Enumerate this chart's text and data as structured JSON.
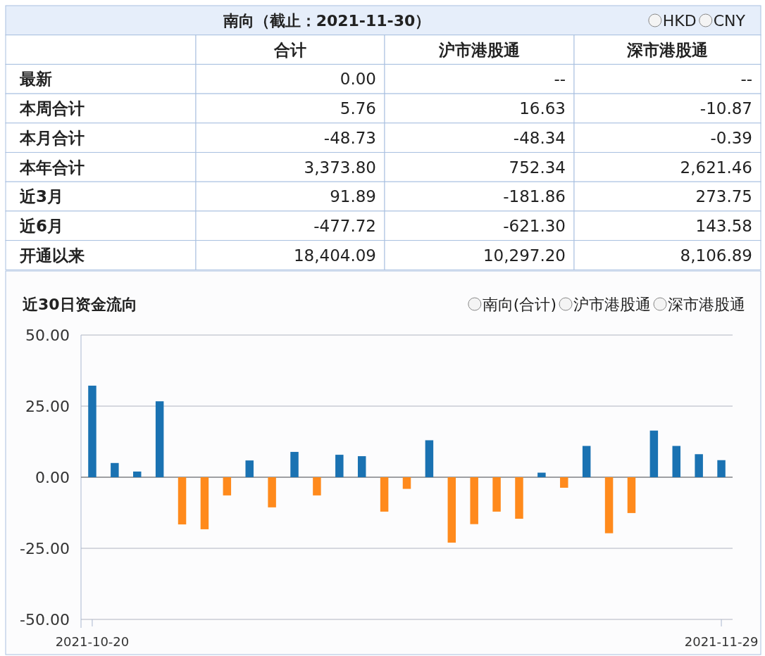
{
  "chart_data": [
    {
      "type": "other",
      "title": "南向（截止：2021-11-30）",
      "annotations": [
        "HKD",
        "CNY"
      ],
      "categories": [
        "合计",
        "沪市港股通",
        "深市港股通"
      ],
      "y_categories": [
        "最新",
        "本周合计",
        "本月合计",
        "本年合计",
        "近3月",
        "近6月",
        "开通以来"
      ],
      "cell_labels": [
        [
          "0.00",
          "--",
          "--"
        ],
        [
          "5.76",
          "16.63",
          "-10.87"
        ],
        [
          "-48.73",
          "-48.34",
          "-0.39"
        ],
        [
          "3,373.80",
          "752.34",
          "2,621.46"
        ],
        [
          "91.89",
          "-181.86",
          "273.75"
        ],
        [
          "-477.72",
          "-621.30",
          "143.58"
        ],
        [
          "18,404.09",
          "10,297.20",
          "8,106.89"
        ]
      ]
    },
    {
      "type": "bar",
      "title": "近30日资金流向",
      "annotations": [
        "南向(合计)",
        "沪市港股通",
        "深市港股通"
      ],
      "categories": [
        "2021-10-20",
        null,
        null,
        null,
        null,
        null,
        null,
        null,
        null,
        null,
        null,
        null,
        null,
        null,
        null,
        null,
        null,
        null,
        null,
        null,
        null,
        null,
        null,
        null,
        null,
        null,
        null,
        null,
        "2021-11-29"
      ],
      "values": [
        32.2,
        5.0,
        2.0,
        26.7,
        -16.6,
        -18.3,
        -6.4,
        5.9,
        -10.6,
        8.9,
        -6.4,
        7.9,
        7.4,
        -12.1,
        -4.1,
        13.0,
        -23.0,
        -16.5,
        -12.1,
        -14.6,
        1.6,
        -3.7,
        11.0,
        -19.7,
        -12.6,
        16.4,
        11.0,
        8.1,
        6.0
      ],
      "colors": [
        "#1a72b2",
        "#1a72b2",
        "#1a72b2",
        "#1a72b2",
        "#ff8a1c",
        "#ff8a1c",
        "#ff8a1c",
        "#1a72b2",
        "#ff8a1c",
        "#1a72b2",
        "#ff8a1c",
        "#1a72b2",
        "#1a72b2",
        "#ff8a1c",
        "#ff8a1c",
        "#1a72b2",
        "#ff8a1c",
        "#ff8a1c",
        "#ff8a1c",
        "#ff8a1c",
        "#1a72b2",
        "#ff8a1c",
        "#1a72b2",
        "#ff8a1c",
        "#ff8a1c",
        "#1a72b2",
        "#1a72b2",
        "#1a72b2",
        "#1a72b2"
      ],
      "ylim": [
        -50,
        50
      ],
      "yticks": [
        {
          "value": 50,
          "label": "50.00"
        },
        {
          "value": 25,
          "label": "25.00"
        },
        {
          "value": 0,
          "label": "0.00"
        },
        {
          "value": -25,
          "label": "-25.00"
        },
        {
          "value": -50,
          "label": "-50.00"
        }
      ],
      "grid": "y"
    }
  ]
}
